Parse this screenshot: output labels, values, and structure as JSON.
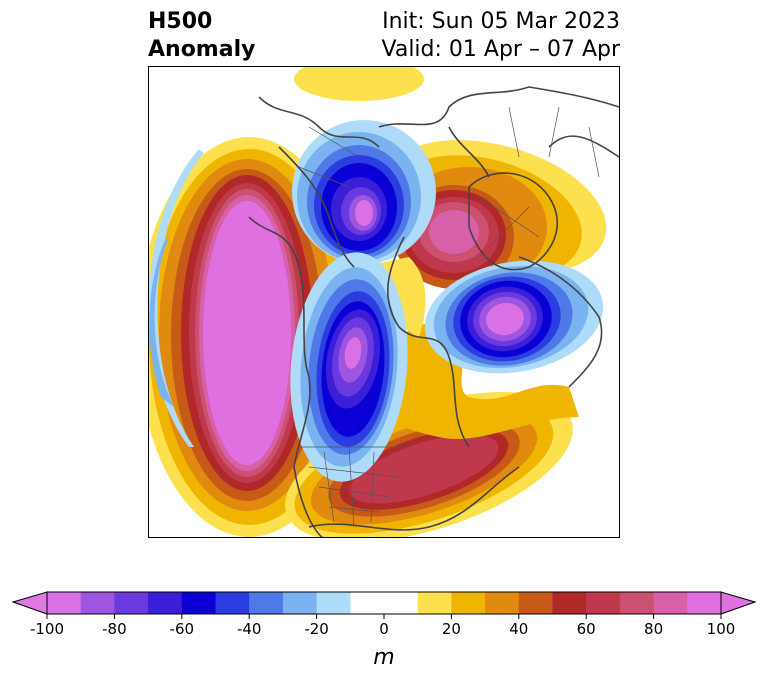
{
  "title": {
    "left_line1": "H500",
    "left_line2": "Anomaly",
    "init": "Init: Sun 05 Mar 2023",
    "valid": "Valid: 01 Apr – 07 Apr"
  },
  "colorbar": {
    "unit": "m",
    "ticks": [
      "-100",
      "-80",
      "-60",
      "-40",
      "-20",
      "0",
      "20",
      "40",
      "60",
      "80",
      "100"
    ],
    "under_color": "#e07ae0",
    "over_color": "#e070e0",
    "colors": [
      "#d970e6",
      "#9e55e0",
      "#6a3ae0",
      "#3a1ed8",
      "#0a00d6",
      "#2b3de0",
      "#4f78e8",
      "#7bb2f0",
      "#aedcf8",
      "#ffffff",
      "#ffffff",
      "#fde04e",
      "#f0b500",
      "#e08a10",
      "#c85a18",
      "#b02828",
      "#c0384c",
      "#cc5070",
      "#d860a8",
      "#e070e0"
    ]
  },
  "map": {
    "anomaly_centers": [
      {
        "name": "pacific-ridge",
        "sign": "positive",
        "value_m": 100
      },
      {
        "name": "north-canada-trough",
        "sign": "negative",
        "value_m": -100
      },
      {
        "name": "greenland-ridge",
        "sign": "positive",
        "value_m": 80
      },
      {
        "name": "scandinavia-trough",
        "sign": "negative",
        "value_m": -100
      },
      {
        "name": "western-canada-trough",
        "sign": "negative",
        "value_m": -100
      },
      {
        "name": "eastern-us-ridge",
        "sign": "positive",
        "value_m": 60
      }
    ]
  }
}
